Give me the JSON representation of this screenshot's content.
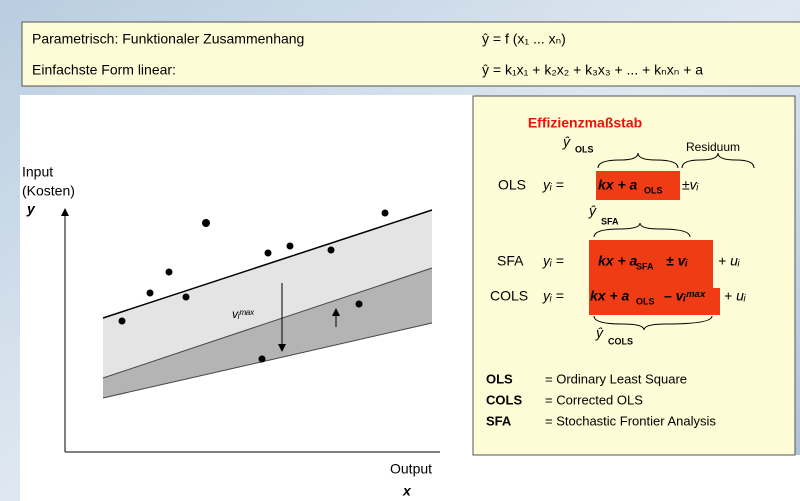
{
  "header": {
    "rows": [
      {
        "label": "Parametrisch: Funktionaler Zusammenhang",
        "formula": "ŷ = f (x₁ ... xₙ)"
      },
      {
        "label": "Einfachste Form linear:",
        "formula": "ŷ = k₁x₁ + k₂x₂ + k₃x₃ + ... + kₙxₙ + a"
      }
    ]
  },
  "diagram": {
    "y_axis": [
      "Input",
      "(Kosten)",
      "y"
    ],
    "x_axis": [
      "Output",
      "x"
    ],
    "arrow_label": "vᵢᵐᵃˣ"
  },
  "panel": {
    "title": "Effizienzmaßstab",
    "estimates": [
      {
        "symbol": "ŷ",
        "sub": "OLS"
      },
      {
        "symbol": "ŷ",
        "sub": "SFA"
      },
      {
        "symbol": "ŷ",
        "sub": "COLS"
      }
    ],
    "residual": "Residuum",
    "rows": [
      {
        "name": "OLS",
        "lhs": "yᵢ =",
        "core": "kx + a",
        "sub": "OLS",
        "rest": "±vᵢ"
      },
      {
        "name": "SFA",
        "lhs": "yᵢ =",
        "core": "kx + a",
        "sub": "SFA",
        "rest": "± vᵢ",
        "tail": "+ uᵢ"
      },
      {
        "name": "COLS",
        "lhs": "yᵢ =",
        "core": "kx + a",
        "sub": "OLS",
        "rest": "– vᵢᵐᵃˣ",
        "tail": "+ uᵢ"
      }
    ],
    "legend": [
      {
        "abbr": "OLS",
        "text": "= Ordinary Least Square"
      },
      {
        "abbr": "COLS",
        "text": "= Corrected OLS"
      },
      {
        "abbr": "SFA",
        "text": "= Stochastic Frontier Analysis"
      }
    ]
  }
}
